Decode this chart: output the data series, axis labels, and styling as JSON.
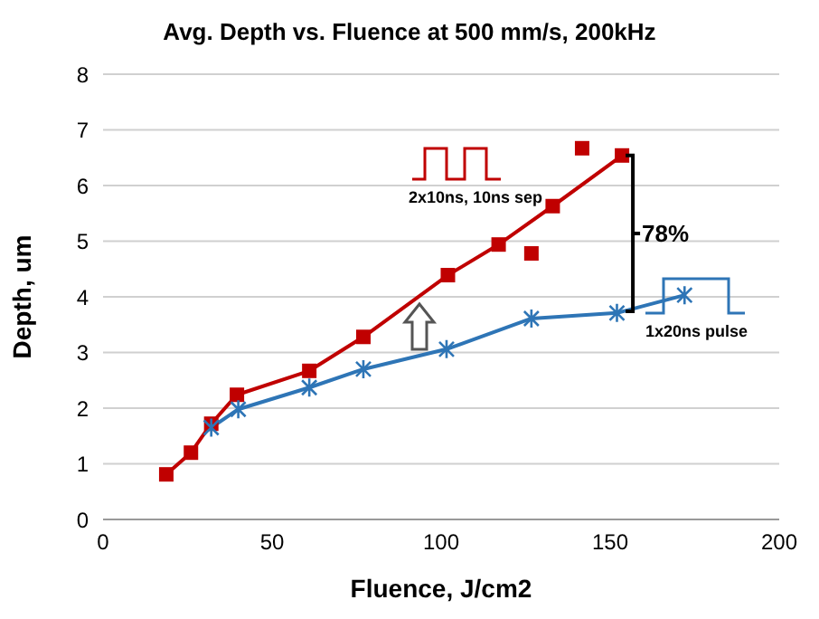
{
  "chart_data": {
    "type": "line",
    "title": "Avg. Depth vs. Fluence at 500 mm/s, 200kHz",
    "xlabel": "Fluence, J/cm2",
    "ylabel": "Depth, um",
    "xlim": [
      0,
      200
    ],
    "xticks": [
      0,
      50,
      100,
      150,
      200
    ],
    "ylim": [
      0,
      8
    ],
    "yticks": [
      0,
      1,
      2,
      3,
      4,
      5,
      6,
      7,
      8
    ],
    "grid": "y",
    "line_style": "solid",
    "series": [
      {
        "color": "#c00000",
        "marker": "square",
        "x": [
          18.7,
          26,
          32,
          39.6,
          61,
          77,
          102,
          117,
          133,
          153.5
        ],
        "values": [
          0.81,
          1.2,
          1.72,
          2.24,
          2.67,
          3.28,
          4.39,
          4.94,
          5.63,
          6.54
        ]
      },
      {
        "type": "scatter",
        "color": "#c00000",
        "marker": "square",
        "x": [
          126.7,
          141.7
        ],
        "values": [
          4.78,
          6.67
        ]
      },
      {
        "color": "#2e75b6",
        "marker": "cross",
        "x": [
          32,
          40,
          61,
          77,
          101.6,
          126.7,
          152,
          172
        ],
        "values": [
          1.65,
          1.98,
          2.37,
          2.7,
          3.06,
          3.61,
          3.71,
          4.03
        ]
      }
    ],
    "annotations": [
      "2x10ns, 10ns sep",
      {
        "text": "78%",
        "x": 153.5,
        "y": 6.54
      },
      "1x20ns pulse"
    ]
  }
}
